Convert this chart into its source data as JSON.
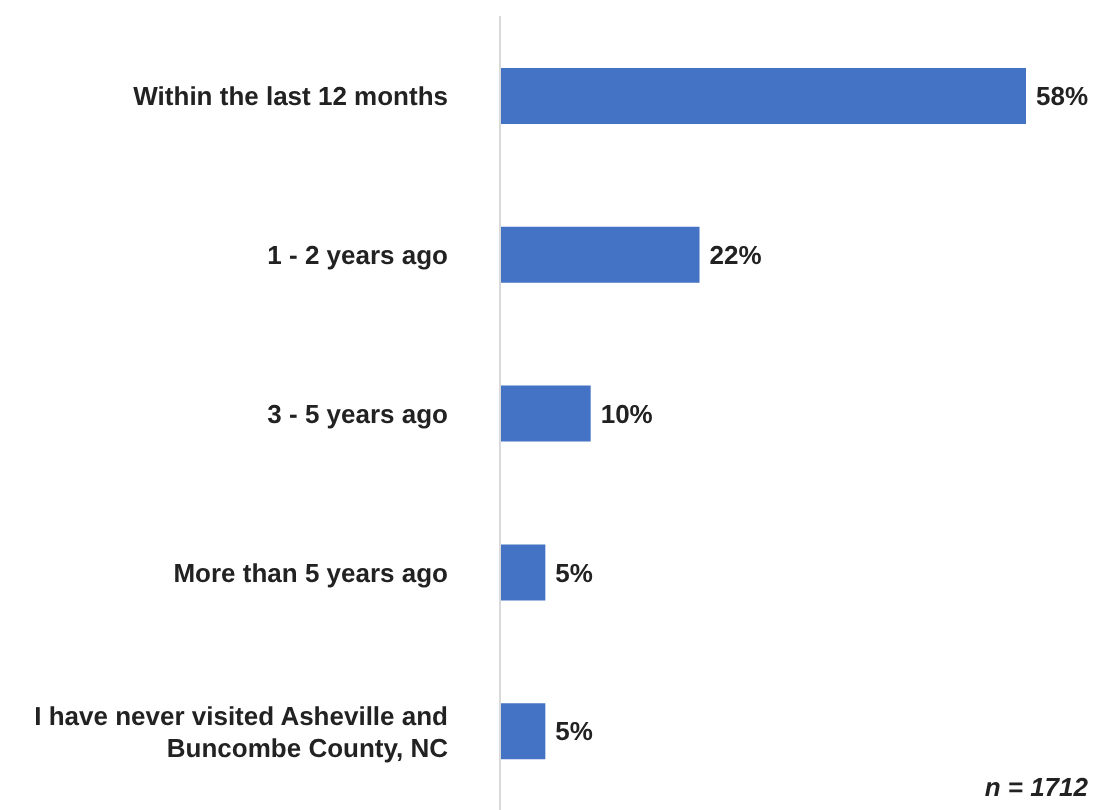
{
  "chart_data": {
    "type": "bar",
    "orientation": "horizontal",
    "categories": [
      "Within the last 12 months",
      "1 - 2 years ago",
      "3 - 5 years ago",
      "More than 5 years ago",
      "I have never visited Asheville and Buncombe County, NC"
    ],
    "values": [
      58,
      22,
      10,
      5,
      5
    ],
    "value_labels": [
      "58%",
      "22%",
      "10%",
      "5%",
      "5%"
    ],
    "color": "#4472c4",
    "annotations": [
      "n = 1712"
    ]
  }
}
